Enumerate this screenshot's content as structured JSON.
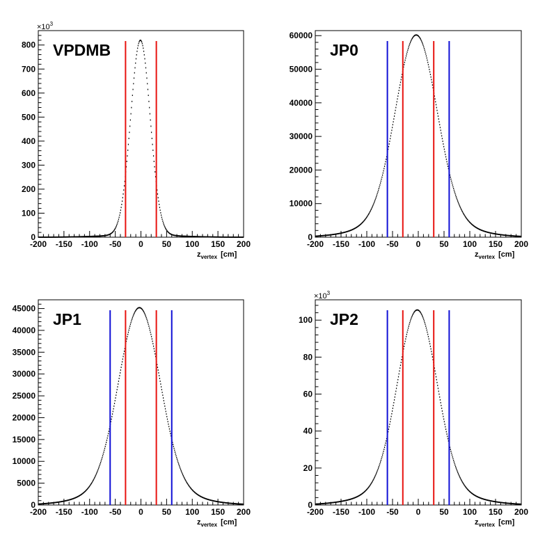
{
  "chart_data": [
    {
      "type": "scatter",
      "title": "VPDMB",
      "xlabel_main": "z",
      "xlabel_sub": "vertex",
      "xlabel_unit": "[cm]",
      "xlim": [
        -200,
        200
      ],
      "xticks": [
        -200,
        -150,
        -100,
        -50,
        0,
        50,
        100,
        150,
        200
      ],
      "ylim": [
        0,
        860
      ],
      "yticks": [
        0,
        100,
        200,
        300,
        400,
        500,
        600,
        700,
        800
      ],
      "exponent": {
        "base": "×10",
        "power": "3"
      },
      "peak": 820,
      "mean": -1,
      "sigma_core": 19,
      "tail_fraction": 0.012,
      "tail_width": 65,
      "series": [
        {
          "color": "#000000",
          "style": "points"
        }
      ],
      "cuts": [
        {
          "x": -30,
          "color": "#e8130f"
        },
        {
          "x": 30,
          "color": "#e8130f"
        }
      ]
    },
    {
      "type": "scatter",
      "title": "JP0",
      "xlabel_main": "z",
      "xlabel_sub": "vertex",
      "xlabel_unit": "[cm]",
      "xlim": [
        -200,
        200
      ],
      "xticks": [
        -200,
        -150,
        -100,
        -50,
        0,
        50,
        100,
        150,
        200
      ],
      "ylim": [
        0,
        61500
      ],
      "yticks": [
        0,
        10000,
        20000,
        30000,
        40000,
        50000,
        60000
      ],
      "peak": 60200,
      "mean": -4,
      "sigma_core": 40,
      "tail_fraction": 0.1,
      "tail_width": 80,
      "series": [
        {
          "color": "#000000",
          "style": "points"
        }
      ],
      "cuts": [
        {
          "x": -60,
          "color": "#0f0fd6"
        },
        {
          "x": -30,
          "color": "#e8130f"
        },
        {
          "x": 30,
          "color": "#e8130f"
        },
        {
          "x": 60,
          "color": "#0f0fd6"
        }
      ]
    },
    {
      "type": "scatter",
      "title": "JP1",
      "xlabel_main": "z",
      "xlabel_sub": "vertex",
      "xlabel_unit": "[cm]",
      "xlim": [
        -200,
        200
      ],
      "xticks": [
        -200,
        -150,
        -100,
        -50,
        0,
        50,
        100,
        150,
        200
      ],
      "ylim": [
        0,
        47000
      ],
      "yticks": [
        0,
        5000,
        10000,
        15000,
        20000,
        25000,
        30000,
        35000,
        40000,
        45000
      ],
      "peak": 45200,
      "mean": -3,
      "sigma_core": 40,
      "tail_fraction": 0.1,
      "tail_width": 80,
      "series": [
        {
          "color": "#000000",
          "style": "points"
        }
      ],
      "cuts": [
        {
          "x": -60,
          "color": "#0f0fd6"
        },
        {
          "x": -30,
          "color": "#e8130f"
        },
        {
          "x": 30,
          "color": "#e8130f"
        },
        {
          "x": 60,
          "color": "#0f0fd6"
        }
      ]
    },
    {
      "type": "scatter",
      "title": "JP2",
      "xlabel_main": "z",
      "xlabel_sub": "vertex",
      "xlabel_unit": "[cm]",
      "xlim": [
        -200,
        200
      ],
      "xticks": [
        -200,
        -150,
        -100,
        -50,
        0,
        50,
        100,
        150,
        200
      ],
      "ylim": [
        0,
        111
      ],
      "yticks": [
        0,
        20,
        40,
        60,
        80,
        100
      ],
      "exponent": {
        "base": "×10",
        "power": "3"
      },
      "peak": 105.5,
      "mean": -2,
      "sigma_core": 38,
      "tail_fraction": 0.1,
      "tail_width": 80,
      "series": [
        {
          "color": "#000000",
          "style": "points"
        }
      ],
      "cuts": [
        {
          "x": -60,
          "color": "#0f0fd6"
        },
        {
          "x": -30,
          "color": "#e8130f"
        },
        {
          "x": 30,
          "color": "#e8130f"
        },
        {
          "x": 60,
          "color": "#0f0fd6"
        }
      ]
    }
  ]
}
